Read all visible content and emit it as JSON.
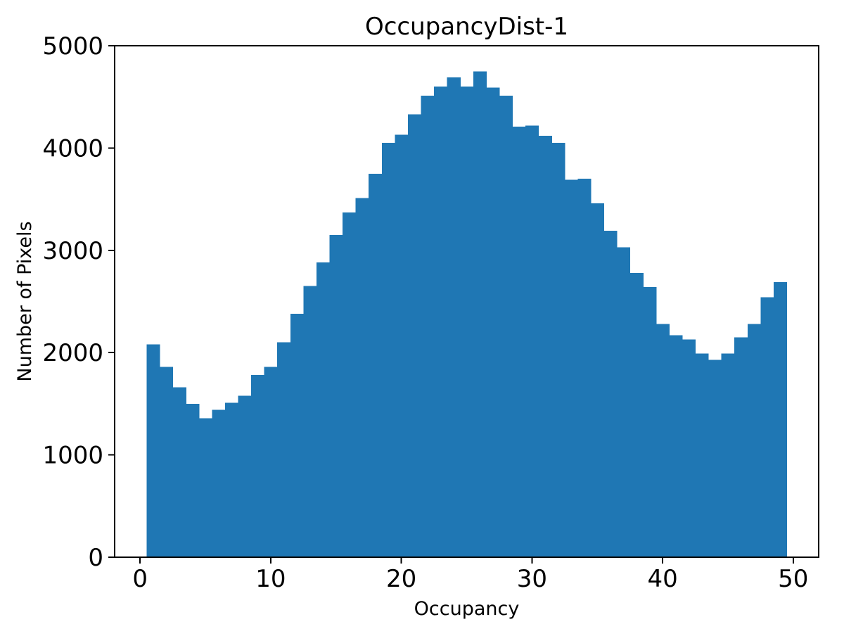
{
  "colors": {
    "background": "#ffffff",
    "bar": "#1f77b4",
    "axis": "#000000",
    "text": "#000000"
  },
  "chart_data": {
    "type": "bar",
    "subtype": "histogram",
    "title": "OccupancyDist-1",
    "xlabel": "Occupancy",
    "ylabel": "Number of Pixels",
    "xlim": [
      -1.95,
      51.95
    ],
    "ylim": [
      0,
      5000
    ],
    "x_ticks": [
      0,
      10,
      20,
      30,
      40,
      50
    ],
    "y_ticks": [
      0,
      1000,
      2000,
      3000,
      4000,
      5000
    ],
    "grid": false,
    "legend": null,
    "bar_color": "#1f77b4",
    "bin_start": 0.5,
    "bin_width": 1,
    "bin_centers": [
      1,
      2,
      3,
      4,
      5,
      6,
      7,
      8,
      9,
      10,
      11,
      12,
      13,
      14,
      15,
      16,
      17,
      18,
      19,
      20,
      21,
      22,
      23,
      24,
      25,
      26,
      27,
      28,
      29,
      30,
      31,
      32,
      33,
      34,
      35,
      36,
      37,
      38,
      39,
      40,
      41,
      42,
      43,
      44,
      45,
      46,
      47,
      48,
      49
    ],
    "values": [
      2080,
      1860,
      1660,
      1500,
      1360,
      1440,
      1510,
      1580,
      1780,
      1860,
      2100,
      2380,
      2650,
      2880,
      3150,
      3370,
      3510,
      3750,
      4050,
      4130,
      4330,
      4510,
      4600,
      4690,
      4600,
      4750,
      4590,
      4510,
      4210,
      4220,
      4120,
      4050,
      3690,
      3700,
      3460,
      3190,
      3030,
      2780,
      2640,
      2280,
      2170,
      2130,
      1990,
      1930,
      1990,
      2150,
      2280,
      2540,
      2690
    ]
  }
}
